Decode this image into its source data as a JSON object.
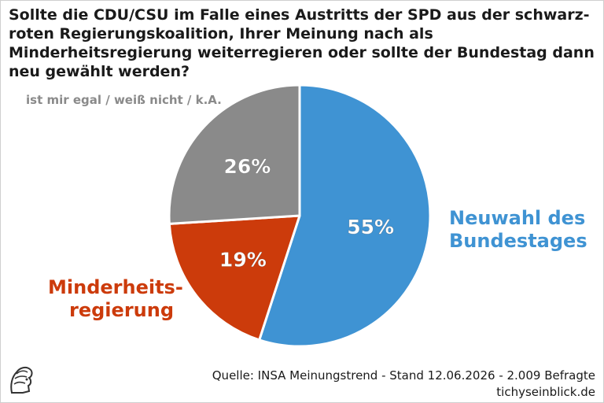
{
  "title": "Sollte die CDU/CSU im Falle eines Austritts der SPD aus der schwarz-roten Regierungskoalition, Ihrer Meinung nach als Minderheitsregierung weiterregieren oder sollte der Bundestag dann neu gewählt werden?",
  "chart_data": {
    "type": "pie",
    "slices": [
      {
        "label": "Neuwahl des Bundestages",
        "value": 55,
        "value_label": "55%",
        "color": "#3f93d3"
      },
      {
        "label": "Minderheits-regierung",
        "value": 19,
        "value_label": "19%",
        "color": "#cc3b0b"
      },
      {
        "label": "ist mir egal / weiß nicht / k.A.",
        "value": 26,
        "value_label": "26%",
        "color": "#8a8a8a"
      }
    ]
  },
  "labels": {
    "neuwahl_line1": "Neuwahl des",
    "neuwahl_line2": "Bundestages",
    "minder_line1": "Minderheits-",
    "minder_line2": "regierung",
    "other": "ist mir egal / weiß nicht / k.A."
  },
  "source": {
    "line1": "Quelle: INSA Meinungstrend - Stand 12.06.2026 - 2.009 Befragte",
    "line2": "tichyseinblick.de"
  }
}
